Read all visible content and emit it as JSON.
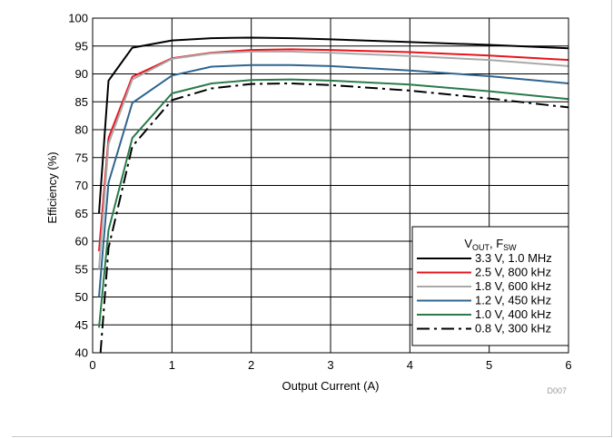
{
  "chart_data": {
    "type": "line",
    "xlabel": "Output Current (A)",
    "ylabel": "Efficiency (%)",
    "xlim": [
      0,
      6
    ],
    "ylim": [
      40,
      100
    ],
    "xticks": [
      "0",
      "1",
      "2",
      "3",
      "4",
      "5",
      "6"
    ],
    "yticks": [
      "40",
      "45",
      "50",
      "55",
      "60",
      "65",
      "70",
      "75",
      "80",
      "85",
      "90",
      "95",
      "100"
    ],
    "grid": true,
    "legend": {
      "placement": "bottom-right",
      "title_main": "V",
      "title_sub1": "OUT",
      "title_sep": ", F",
      "title_sub2": "SW"
    },
    "watermark": "D007",
    "series": [
      {
        "name": "3.3 V, 1.0 MHz",
        "color": "#000000",
        "dash": "solid",
        "x": [
          0.08,
          0.2,
          0.5,
          1.0,
          1.5,
          2.0,
          2.5,
          3.0,
          4.0,
          5.0,
          6.0
        ],
        "y": [
          65,
          88.8,
          94.7,
          96.0,
          96.4,
          96.5,
          96.4,
          96.2,
          95.7,
          95.2,
          94.6
        ]
      },
      {
        "name": "2.5 V, 800 kHz",
        "color": "#e8141b",
        "dash": "solid",
        "x": [
          0.08,
          0.2,
          0.5,
          1.0,
          1.5,
          2.0,
          2.5,
          3.0,
          4.0,
          5.0,
          6.0
        ],
        "y": [
          58.2,
          78.5,
          89.5,
          92.8,
          93.8,
          94.3,
          94.4,
          94.3,
          93.9,
          93.3,
          92.5
        ]
      },
      {
        "name": "1.8 V, 600 kHz",
        "color": "#a9a9a9",
        "dash": "solid",
        "x": [
          0.08,
          0.2,
          0.5,
          1.0,
          1.5,
          2.0,
          2.5,
          3.0,
          4.0,
          5.0,
          6.0
        ],
        "y": [
          55,
          77.5,
          89.0,
          92.7,
          93.7,
          94.0,
          94.0,
          93.8,
          93.2,
          92.5,
          91.4
        ]
      },
      {
        "name": "1.2 V, 450 kHz",
        "color": "#2f6590",
        "dash": "solid",
        "x": [
          0.08,
          0.2,
          0.5,
          1.0,
          1.5,
          2.0,
          2.5,
          3.0,
          4.0,
          5.0,
          6.0
        ],
        "y": [
          50,
          70.5,
          84.8,
          89.7,
          91.3,
          91.6,
          91.6,
          91.4,
          90.6,
          89.6,
          88.3
        ]
      },
      {
        "name": "1.0 V, 400 kHz",
        "color": "#2a7a4b",
        "dash": "solid",
        "x": [
          0.08,
          0.2,
          0.5,
          1.0,
          1.5,
          2.0,
          2.5,
          3.0,
          4.0,
          5.0,
          6.0
        ],
        "y": [
          44.5,
          62.0,
          78.5,
          86.5,
          88.3,
          88.9,
          89.0,
          88.8,
          88.1,
          86.9,
          85.5
        ]
      },
      {
        "name": "0.8 V, 300 kHz",
        "color": "#000000",
        "dash": "dashdot",
        "x": [
          0.1,
          0.2,
          0.5,
          1.0,
          1.5,
          2.0,
          2.5,
          3.0,
          4.0,
          5.0,
          6.0
        ],
        "y": [
          40.0,
          58.8,
          77.0,
          85.3,
          87.4,
          88.2,
          88.3,
          88.0,
          87.0,
          85.6,
          84.0
        ]
      }
    ]
  }
}
